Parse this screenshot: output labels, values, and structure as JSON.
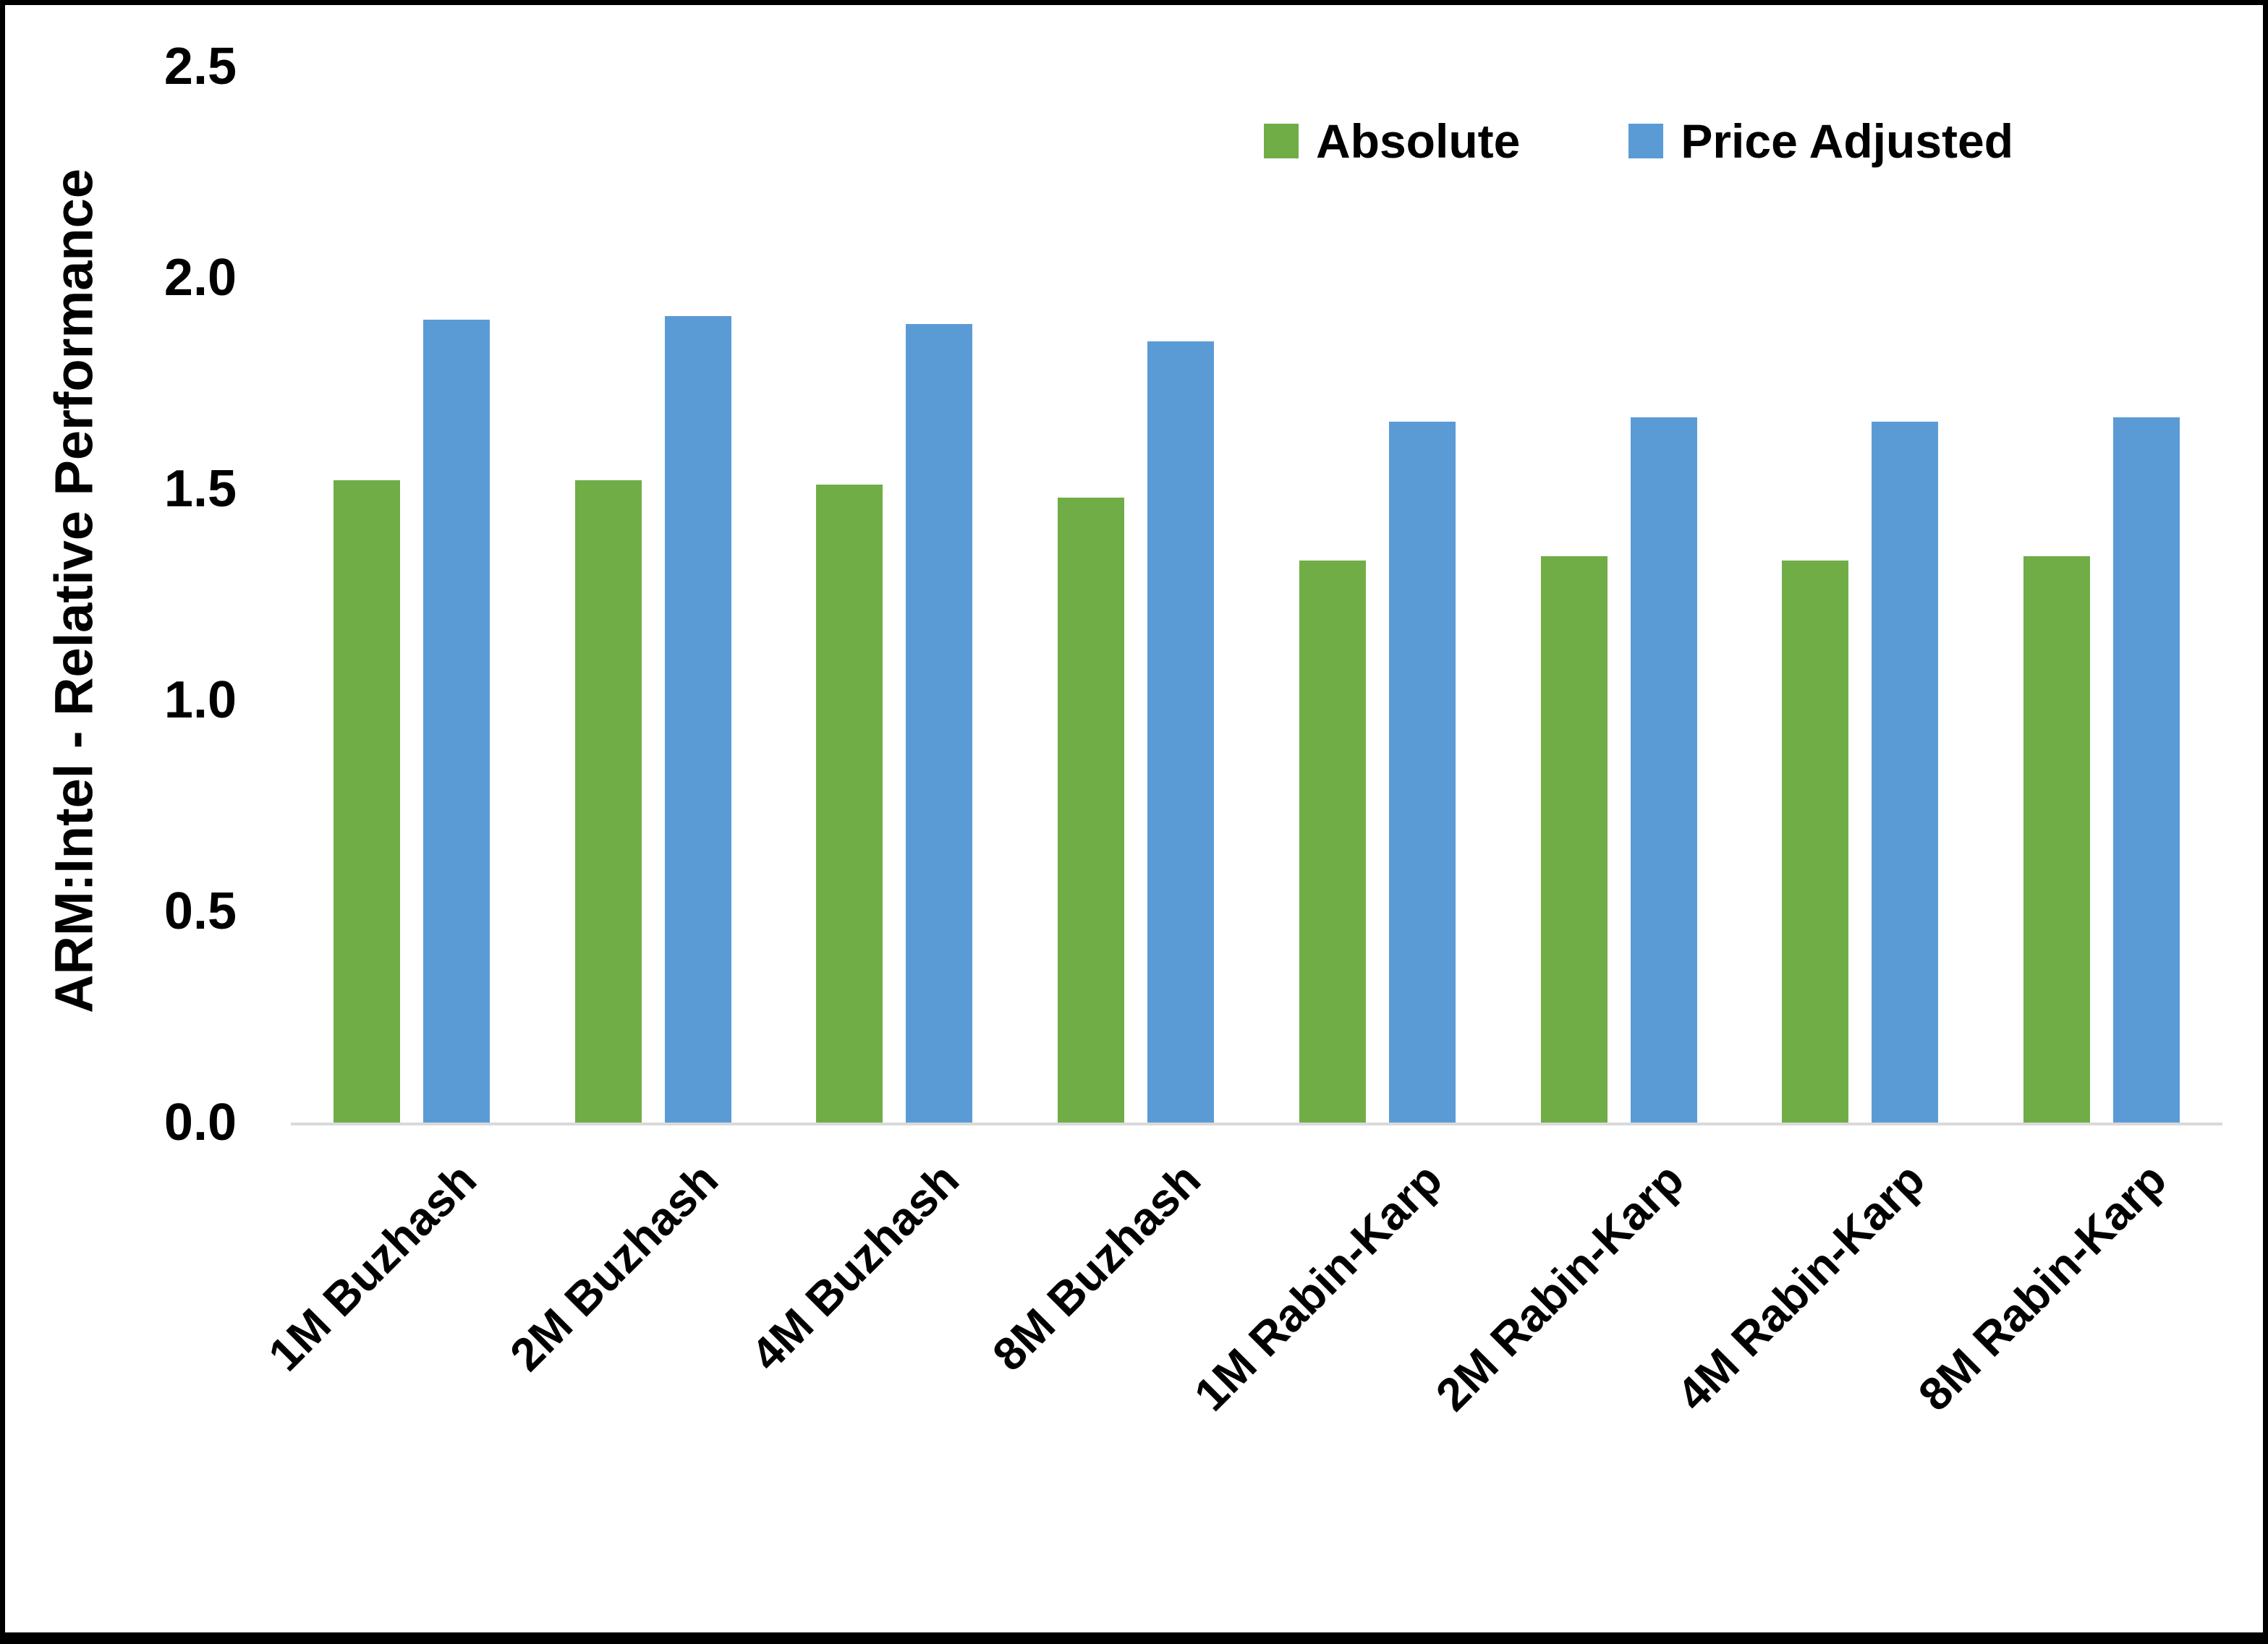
{
  "chart_data": {
    "type": "bar",
    "title": "",
    "ylabel": "ARM:Intel - Relative Performance",
    "xlabel": "",
    "ylim": [
      0,
      2.5
    ],
    "yticks": [
      "0.0",
      "0.5",
      "1.0",
      "1.5",
      "2.0",
      "2.5"
    ],
    "ytick_values": [
      0,
      0.5,
      1.0,
      1.5,
      2.0,
      2.5
    ],
    "grid": false,
    "legend_position": "top-right",
    "categories": [
      "1M Buzhash",
      "2M Buzhash",
      "4M Buzhash",
      "8M Buzhash",
      "1M Rabin-Karp",
      "2M Rabin-Karp",
      "4M Rabin-Karp",
      "8M Rabin-Karp"
    ],
    "series": [
      {
        "name": "Absolute",
        "color": "#70AD47",
        "values": [
          1.52,
          1.52,
          1.51,
          1.48,
          1.33,
          1.34,
          1.33,
          1.34
        ]
      },
      {
        "name": "Price Adjusted",
        "color": "#5B9BD5",
        "values": [
          1.9,
          1.91,
          1.89,
          1.85,
          1.66,
          1.67,
          1.66,
          1.67
        ]
      }
    ],
    "colors": {
      "absolute": "#70AD47",
      "price_adjusted": "#5B9BD5",
      "axis_line": "#d9d9d9",
      "text": "#000000",
      "background": "#ffffff",
      "border": "#000000"
    }
  }
}
